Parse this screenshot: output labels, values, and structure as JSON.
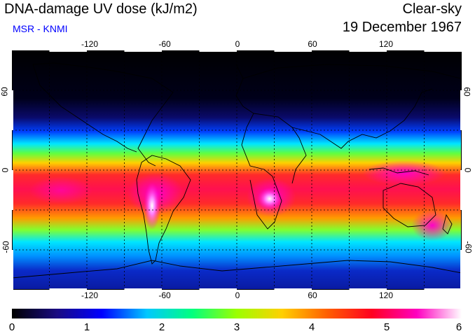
{
  "header": {
    "title": "DNA-damage UV dose (kJ/m2)",
    "subtitle": "MSR - KNMI",
    "sky_condition": "Clear-sky",
    "date": "19 December 1967"
  },
  "axes": {
    "longitude_ticks": [
      "-120",
      "-60",
      "0",
      "60",
      "120"
    ],
    "latitude_ticks": [
      "60",
      "0",
      "-60"
    ]
  },
  "colorbar": {
    "labels": [
      "0",
      "1",
      "2",
      "3",
      "4",
      "5",
      "6"
    ],
    "colors": [
      "#000000",
      "#1a0b82",
      "#0000ff",
      "#00c8ff",
      "#00ff80",
      "#9cff00",
      "#ffd000",
      "#ff6000",
      "#ff0020",
      "#ff00c0",
      "#ffffff"
    ]
  },
  "map_colors": {
    "polar_north": "#000000",
    "subtropic": "#00e6ff",
    "tropic_peak": "#ff2a2a",
    "southern_peak": "#ff00c8",
    "antarctic": "#0a2ac8"
  }
}
